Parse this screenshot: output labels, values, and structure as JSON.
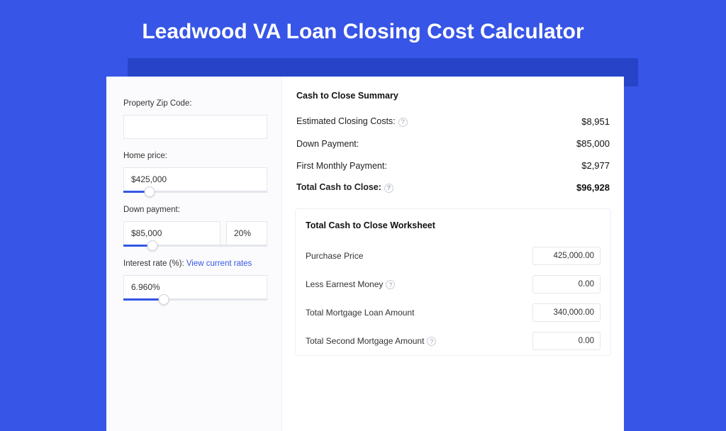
{
  "colors": {
    "page_bg": "#3755e6",
    "shadow_bar": "#2744c9",
    "card_bg": "#ffffff",
    "left_bg": "#fbfbfd",
    "border": "#e3e6ec",
    "accent": "#3556e3",
    "text": "#333333",
    "title_text": "#ffffff"
  },
  "title": "Leadwood VA Loan Closing Cost Calculator",
  "form": {
    "zip": {
      "label": "Property Zip Code:",
      "value": ""
    },
    "home_price": {
      "label": "Home price:",
      "value": "$425,000",
      "slider_pct": 18
    },
    "down_payment": {
      "label": "Down payment:",
      "value": "$85,000",
      "pct": "20%",
      "slider_pct": 20
    },
    "interest": {
      "label": "Interest rate (%):",
      "link": "View current rates",
      "value": "6.960%",
      "slider_pct": 28
    }
  },
  "summary": {
    "title": "Cash to Close Summary",
    "rows": [
      {
        "label": "Estimated Closing Costs:",
        "help": true,
        "value": "$8,951",
        "bold": false
      },
      {
        "label": "Down Payment:",
        "help": false,
        "value": "$85,000",
        "bold": false
      },
      {
        "label": "First Monthly Payment:",
        "help": false,
        "value": "$2,977",
        "bold": false
      },
      {
        "label": "Total Cash to Close:",
        "help": true,
        "value": "$96,928",
        "bold": true
      }
    ]
  },
  "worksheet": {
    "title": "Total Cash to Close Worksheet",
    "rows": [
      {
        "label": "Purchase Price",
        "help": false,
        "value": "425,000.00"
      },
      {
        "label": "Less Earnest Money",
        "help": true,
        "value": "0.00"
      },
      {
        "label": "Total Mortgage Loan Amount",
        "help": false,
        "value": "340,000.00"
      },
      {
        "label": "Total Second Mortgage Amount",
        "help": true,
        "value": "0.00"
      }
    ]
  }
}
